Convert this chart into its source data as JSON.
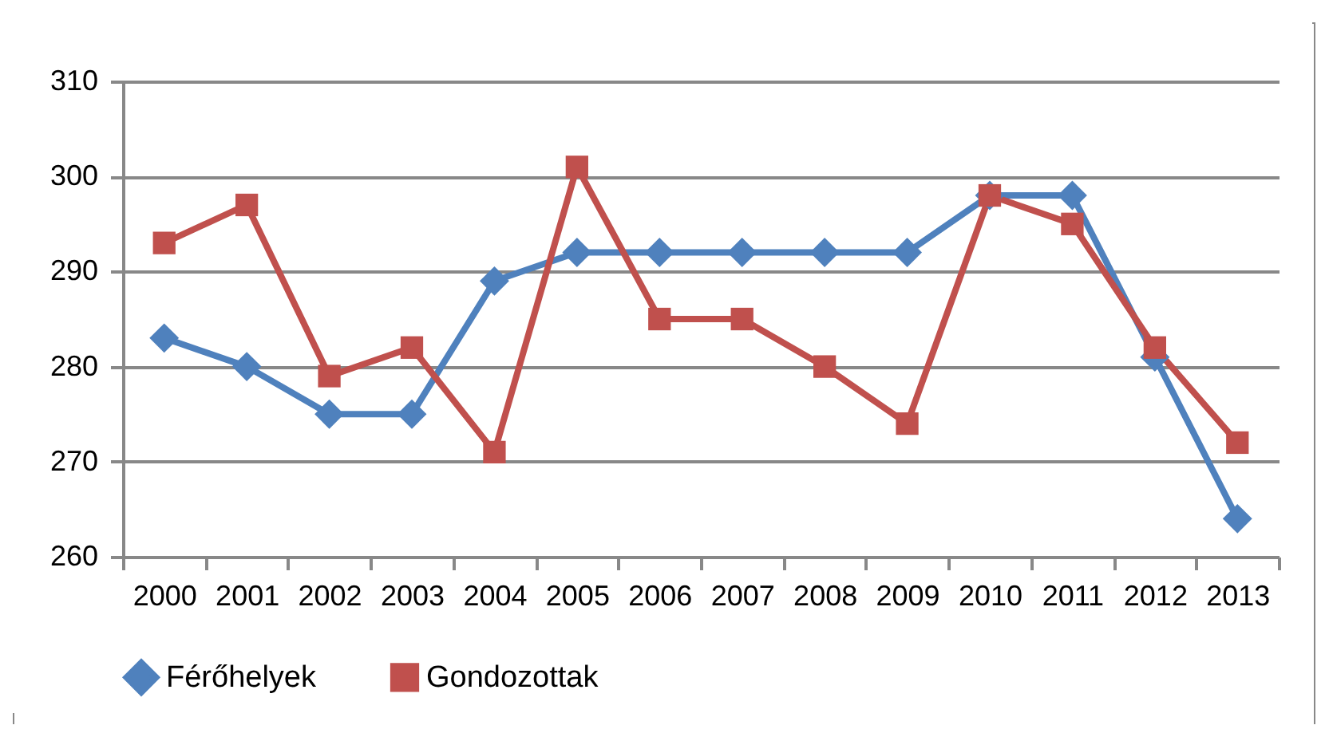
{
  "chart_data": {
    "type": "line",
    "categories": [
      "2000",
      "2001",
      "2002",
      "2003",
      "2004",
      "2005",
      "2006",
      "2007",
      "2008",
      "2009",
      "2010",
      "2011",
      "2012",
      "2013"
    ],
    "series": [
      {
        "name": "Férőhelyek",
        "color": "#4f81bd",
        "marker": "diamond",
        "values": [
          283,
          280,
          275,
          275,
          289,
          292,
          292,
          292,
          292,
          292,
          298,
          298,
          281,
          264
        ]
      },
      {
        "name": "Gondozottak",
        "color": "#c0504d",
        "marker": "square",
        "values": [
          293,
          297,
          279,
          282,
          271,
          301,
          285,
          285,
          280,
          274,
          298,
          295,
          282,
          272
        ]
      }
    ],
    "ylim": [
      260,
      310
    ],
    "yticks": [
      260,
      270,
      280,
      290,
      300,
      310
    ],
    "grid": "y",
    "legend": "bottom"
  }
}
